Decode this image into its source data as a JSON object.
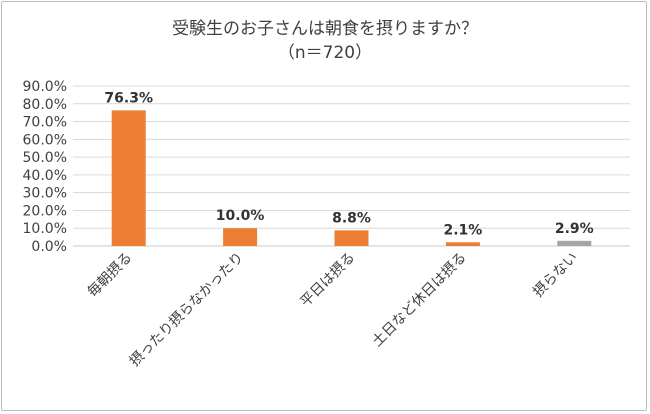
{
  "chart_data": {
    "type": "bar",
    "title": "受験生のお子さんは朝食を摂りますか？",
    "subtitle": "（n＝720）",
    "categories": [
      "毎朝摂る",
      "摂ったり摂らなかったり",
      "平日は摂る",
      "土日など休日は摂る",
      "摂らない"
    ],
    "values": [
      76.3,
      10.0,
      8.8,
      2.1,
      2.9
    ],
    "data_labels": [
      "76.3%",
      "10.0%",
      "8.8%",
      "2.1%",
      "2.9%"
    ],
    "colors": [
      "#ed7d31",
      "#ed7d31",
      "#ed7d31",
      "#ed7d31",
      "#a5a5a5"
    ],
    "ylim": [
      0,
      90
    ],
    "yticks": [
      "0.0%",
      "10.0%",
      "20.0%",
      "30.0%",
      "40.0%",
      "50.0%",
      "60.0%",
      "70.0%",
      "80.0%",
      "90.0%"
    ],
    "grid": true,
    "legend": "none"
  }
}
